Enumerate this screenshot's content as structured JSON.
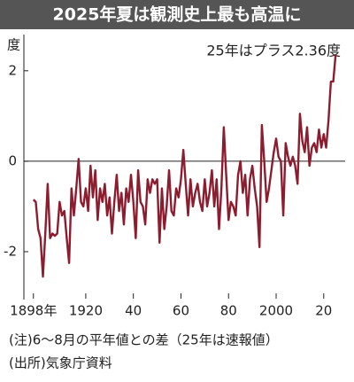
{
  "chart_data": {
    "type": "line",
    "title": "2025年夏は観測史上最も高温に",
    "y_unit": "度",
    "annotation": "25年はプラス2.36度",
    "notes": [
      "(注)6～8月の平年値との差（25年は速報値）",
      "(出所)気象庁資料"
    ],
    "x": [
      1898,
      1899,
      1900,
      1901,
      1902,
      1903,
      1904,
      1905,
      1906,
      1907,
      1908,
      1909,
      1910,
      1911,
      1912,
      1913,
      1914,
      1915,
      1916,
      1917,
      1918,
      1919,
      1920,
      1921,
      1922,
      1923,
      1924,
      1925,
      1926,
      1927,
      1928,
      1929,
      1930,
      1931,
      1932,
      1933,
      1934,
      1935,
      1936,
      1937,
      1938,
      1939,
      1940,
      1941,
      1942,
      1943,
      1944,
      1945,
      1946,
      1947,
      1948,
      1949,
      1950,
      1951,
      1952,
      1953,
      1954,
      1955,
      1956,
      1957,
      1958,
      1959,
      1960,
      1961,
      1962,
      1963,
      1964,
      1965,
      1966,
      1967,
      1968,
      1969,
      1970,
      1971,
      1972,
      1973,
      1974,
      1975,
      1976,
      1977,
      1978,
      1979,
      1980,
      1981,
      1982,
      1983,
      1984,
      1985,
      1986,
      1987,
      1988,
      1989,
      1990,
      1991,
      1992,
      1993,
      1994,
      1995,
      1996,
      1997,
      1998,
      1999,
      2000,
      2001,
      2002,
      2003,
      2004,
      2005,
      2006,
      2007,
      2008,
      2009,
      2010,
      2011,
      2012,
      2013,
      2014,
      2015,
      2016,
      2017,
      2018,
      2019,
      2020,
      2021,
      2022,
      2023,
      2024,
      2025
    ],
    "series": [
      {
        "color": "#8c1c2e",
        "values": [
          -0.85,
          -0.9,
          -1.5,
          -1.7,
          -2.55,
          -1.6,
          -0.5,
          -1.7,
          -1.6,
          -1.65,
          -1.6,
          -0.9,
          -1.2,
          -1.1,
          -1.7,
          -2.25,
          -0.6,
          -1.2,
          -0.6,
          0.05,
          -0.9,
          -1.0,
          -0.6,
          -1.1,
          -0.1,
          -0.8,
          -0.2,
          -1.3,
          -0.6,
          -0.9,
          -0.5,
          -1.2,
          -0.8,
          -1.6,
          -0.9,
          -0.3,
          -1.1,
          -0.7,
          -1.4,
          -0.6,
          -0.9,
          -0.3,
          -0.9,
          -1.7,
          -0.2,
          -0.9,
          -1.0,
          -1.4,
          -0.4,
          -0.7,
          -0.4,
          -0.5,
          -0.4,
          -1.8,
          -0.6,
          -1.5,
          -1.0,
          -0.2,
          -1.1,
          -1.2,
          -0.6,
          -0.8,
          -0.4,
          0.25,
          -0.5,
          -1.2,
          -0.4,
          -1.0,
          -0.7,
          -0.5,
          -0.9,
          -1.1,
          -0.4,
          -1.0,
          -0.7,
          -0.2,
          -1.0,
          -0.4,
          -1.5,
          -0.6,
          0.75,
          -0.3,
          -1.3,
          -0.9,
          -1.0,
          -1.2,
          -0.3,
          0.0,
          -0.7,
          -0.3,
          -1.2,
          -0.4,
          -0.1,
          -0.6,
          -1.0,
          -1.9,
          0.8,
          0.0,
          -0.9,
          -0.6,
          -0.2,
          0.2,
          0.5,
          0.1,
          0.0,
          -1.2,
          0.4,
          0.1,
          -0.1,
          0.1,
          -0.1,
          -0.5,
          1.05,
          0.45,
          0.2,
          0.75,
          -0.1,
          0.3,
          0.4,
          0.2,
          0.7,
          0.3,
          0.6,
          0.3,
          0.9,
          1.76,
          1.76,
          2.36
        ]
      }
    ],
    "xlim": [
      1894,
      2029
    ],
    "xticks": [
      {
        "value": 1898,
        "label": "1898年"
      },
      1920,
      {
        "value": 1940,
        "label": "40"
      },
      {
        "value": 1960,
        "label": "60"
      },
      {
        "value": 1980,
        "label": "80"
      },
      2000,
      {
        "value": 2020,
        "label": "20"
      }
    ],
    "ylim": [
      -3,
      2.8
    ],
    "yticks": [
      2,
      0,
      -2
    ],
    "zero_line": true
  }
}
